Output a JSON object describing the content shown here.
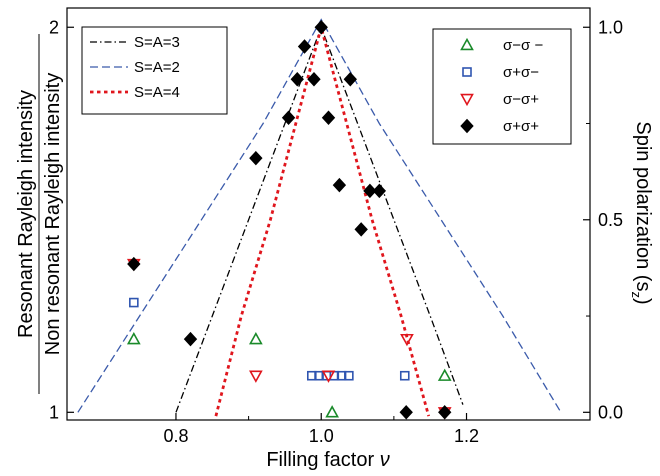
{
  "chart_data": {
    "type": "scatter",
    "xlabel": "Filling factor",
    "xlabel_symbol": "ν",
    "ylabel_left_line1": "Resonant Rayleigh intensity",
    "ylabel_left_line2": "Non resonant Rayleigh intensity",
    "ylabel_right": "Spin polarization (s",
    "ylabel_right_sub": "z",
    "ylabel_right_close": ")",
    "xlim": [
      0.65,
      1.37
    ],
    "ylim_right": [
      -0.02,
      1.05
    ],
    "x_ticks": [
      {
        "value": 0.8,
        "label": "0.8"
      },
      {
        "value": 1.0,
        "label": "1.0"
      },
      {
        "value": 1.2,
        "label": "1.2"
      }
    ],
    "y_left_ticks": [
      {
        "value": 0.0,
        "label": "1"
      },
      {
        "value": 1.0,
        "label": "2"
      }
    ],
    "y_right_ticks": [
      {
        "value": 0.0,
        "label": "0.0"
      },
      {
        "value": 0.5,
        "label": "0.5"
      },
      {
        "value": 1.0,
        "label": "1.0"
      }
    ],
    "grid": false,
    "curve_legend_position": "top-left",
    "marker_legend_position": "top-right",
    "curves": [
      {
        "name": "S=A=3",
        "style": "dash-dot",
        "color": "#000000",
        "points": [
          [
            0.8,
            0.0
          ],
          [
            0.85,
            0.25
          ],
          [
            0.9,
            0.5
          ],
          [
            0.95,
            0.75
          ],
          [
            1.0,
            1.0
          ],
          [
            1.05,
            0.75
          ],
          [
            1.1,
            0.5
          ],
          [
            1.15,
            0.25
          ],
          [
            1.195,
            0.02
          ]
        ]
      },
      {
        "name": "S=A=2",
        "style": "dashed",
        "color": "#3b5bab",
        "points": [
          [
            0.665,
            0.0
          ],
          [
            0.75,
            0.25
          ],
          [
            0.835,
            0.5
          ],
          [
            0.92,
            0.75
          ],
          [
            1.0,
            1.02
          ],
          [
            1.08,
            0.75
          ],
          [
            1.165,
            0.5
          ],
          [
            1.25,
            0.25
          ],
          [
            1.33,
            0.0
          ]
        ]
      },
      {
        "name": "S=A=4",
        "style": "dotted",
        "color": "#e0161d",
        "points": [
          [
            0.855,
            -0.01
          ],
          [
            0.89,
            0.25
          ],
          [
            0.93,
            0.5
          ],
          [
            0.965,
            0.75
          ],
          [
            1.0,
            1.0
          ],
          [
            1.035,
            0.75
          ],
          [
            1.07,
            0.5
          ],
          [
            1.11,
            0.25
          ],
          [
            1.148,
            -0.01
          ]
        ]
      }
    ],
    "series": [
      {
        "name": "σ−σ −",
        "marker": "triangle-up",
        "color": "#1a8a2a",
        "points": [
          [
            0.742,
            0.19
          ],
          [
            0.91,
            0.19
          ],
          [
            1.015,
            0.0
          ],
          [
            1.17,
            0.095
          ]
        ]
      },
      {
        "name": "σ+σ−",
        "marker": "square",
        "color": "#2f55b0",
        "points": [
          [
            0.742,
            0.285
          ],
          [
            0.987,
            0.095
          ],
          [
            0.997,
            0.095
          ],
          [
            1.007,
            0.095
          ],
          [
            1.018,
            0.095
          ],
          [
            1.028,
            0.095
          ],
          [
            1.038,
            0.095
          ],
          [
            1.115,
            0.095
          ]
        ]
      },
      {
        "name": "σ−σ+",
        "marker": "triangle-down",
        "color": "#e0161d",
        "points": [
          [
            0.742,
            0.385
          ],
          [
            0.91,
            0.095
          ],
          [
            1.01,
            0.095
          ],
          [
            1.118,
            0.19
          ],
          [
            1.17,
            0.0
          ]
        ]
      },
      {
        "name": "σ+σ+",
        "marker": "diamond",
        "color": "#000000",
        "points": [
          [
            0.742,
            0.385
          ],
          [
            0.82,
            0.19
          ],
          [
            0.91,
            0.66
          ],
          [
            0.955,
            0.765
          ],
          [
            0.967,
            0.865
          ],
          [
            0.977,
            0.95
          ],
          [
            0.99,
            0.865
          ],
          [
            1.0,
            1.0
          ],
          [
            1.01,
            0.765
          ],
          [
            1.025,
            0.59
          ],
          [
            1.04,
            0.865
          ],
          [
            1.055,
            0.475
          ],
          [
            1.067,
            0.575
          ],
          [
            1.08,
            0.575
          ],
          [
            1.117,
            0.0
          ],
          [
            1.17,
            0.0
          ]
        ]
      }
    ]
  }
}
